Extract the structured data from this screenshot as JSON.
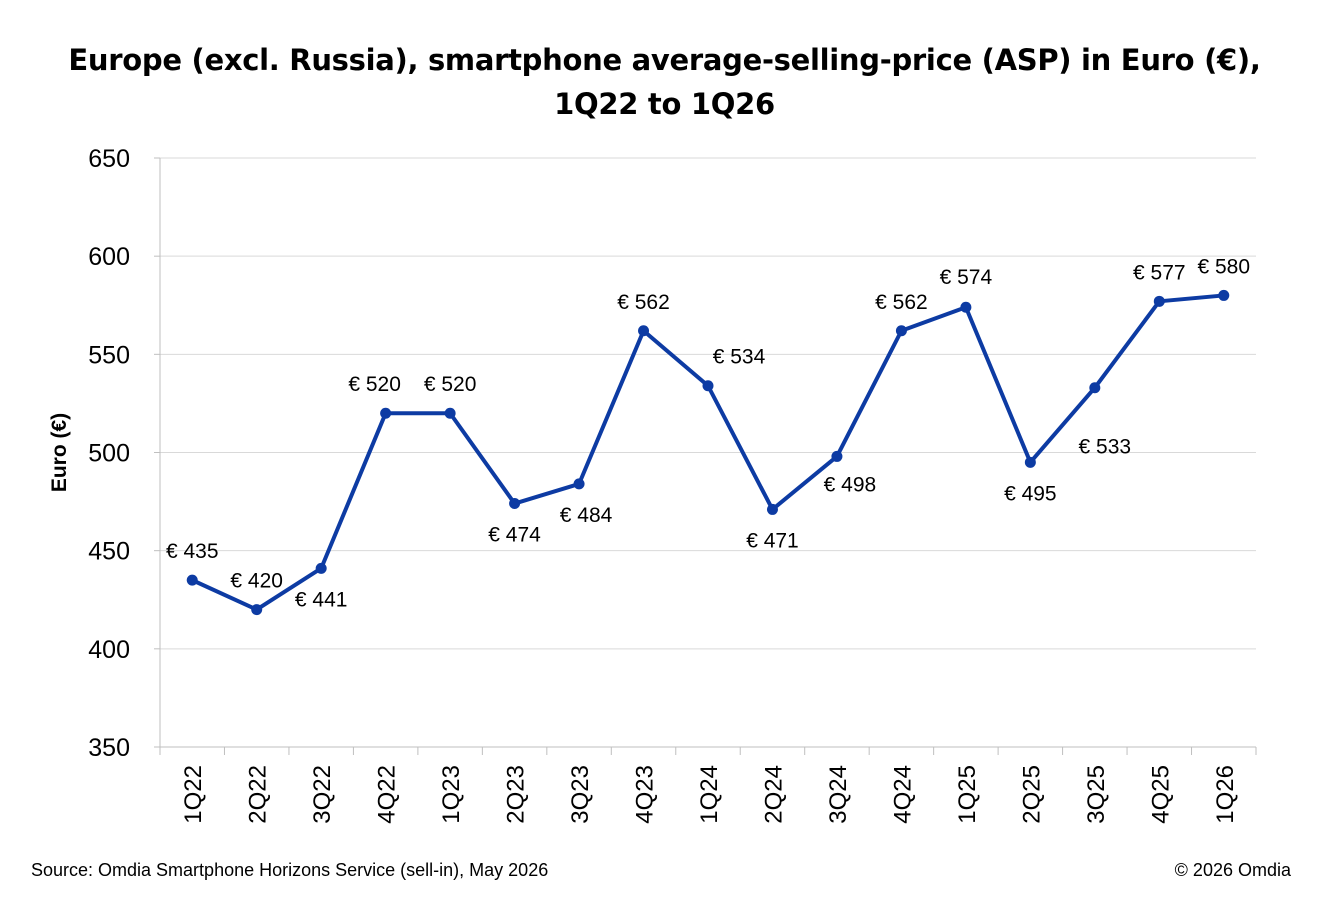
{
  "title_line1": "Europe (excl. Russia), smartphone average-selling-price (ASP) in Euro (€),",
  "title_line2": "1Q22 to 1Q26",
  "source": "Source: Omdia Smartphone Horizons Service (sell-in), May 2026",
  "copyright": "© 2026 Omdia",
  "chart_data": {
    "type": "line",
    "title": "Europe (excl. Russia), smartphone average-selling-price (ASP) in Euro (€), 1Q22 to 1Q26",
    "xlabel": "",
    "ylabel": "Euro (€)",
    "ylim": [
      350,
      650
    ],
    "yticks": [
      350,
      400,
      450,
      500,
      550,
      600,
      650
    ],
    "grid": true,
    "legend": "none",
    "line_color": "#0d3ba3",
    "categories": [
      "1Q22",
      "2Q22",
      "3Q22",
      "4Q22",
      "1Q23",
      "2Q23",
      "3Q23",
      "4Q23",
      "1Q24",
      "2Q24",
      "3Q24",
      "4Q24",
      "1Q25",
      "2Q25",
      "3Q25",
      "4Q25",
      "1Q26"
    ],
    "series": [
      {
        "values": [
          435,
          420,
          441,
          520,
          520,
          474,
          484,
          562,
          534,
          471,
          498,
          562,
          574,
          495,
          533,
          577,
          580
        ],
        "labels": [
          "€ 435",
          "€ 420",
          "€ 441",
          "€ 520",
          "€ 520",
          "€ 474",
          "€ 484",
          "€ 562",
          "€ 534",
          "€ 471",
          "€ 498",
          "€ 562",
          "€ 574",
          "€ 495",
          "€ 533",
          "€ 577",
          "€ 580"
        ]
      }
    ]
  }
}
